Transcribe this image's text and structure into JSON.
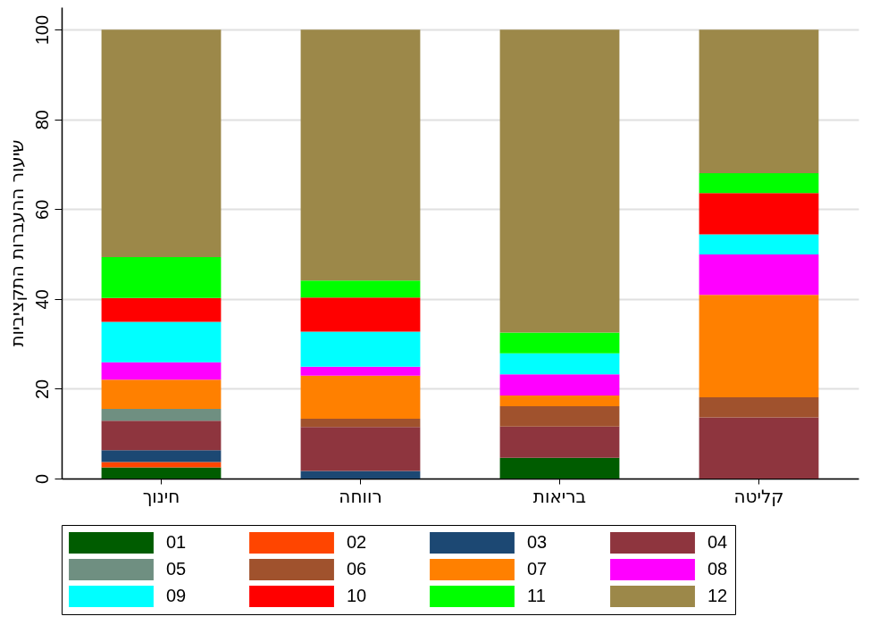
{
  "chart_data": {
    "type": "bar",
    "stacked": true,
    "ylabel": "שיעור ההעברות התקציביות",
    "categories": [
      "חינוך",
      "רווחה",
      "בריאות",
      "קליטה"
    ],
    "ylim": [
      0,
      105
    ],
    "yticks": [
      0,
      20,
      40,
      60,
      80,
      100
    ],
    "grid": "y",
    "legend": "bottom",
    "series": [
      {
        "name": "01",
        "color": "#005c00",
        "values": [
          2.5,
          0,
          4.6,
          0
        ]
      },
      {
        "name": "02",
        "color": "#ff4500",
        "values": [
          1.2,
          0,
          0,
          0
        ]
      },
      {
        "name": "03",
        "color": "#1c4873",
        "values": [
          2.6,
          1.7,
          0,
          0
        ]
      },
      {
        "name": "04",
        "color": "#8e353e",
        "values": [
          6.6,
          9.8,
          7.0,
          13.6
        ]
      },
      {
        "name": "05",
        "color": "#6f8f81",
        "values": [
          2.6,
          0,
          0,
          0
        ]
      },
      {
        "name": "06",
        "color": "#a0522d",
        "values": [
          0,
          1.8,
          4.5,
          4.5
        ]
      },
      {
        "name": "07",
        "color": "#ff8000",
        "values": [
          6.5,
          9.6,
          2.4,
          22.8
        ]
      },
      {
        "name": "08",
        "color": "#ff00ff",
        "values": [
          3.9,
          2.0,
          4.7,
          9.0
        ]
      },
      {
        "name": "09",
        "color": "#00ffff",
        "values": [
          9.0,
          7.8,
          4.7,
          4.5
        ]
      },
      {
        "name": "10",
        "color": "#ff0000",
        "values": [
          5.3,
          7.6,
          0,
          9.2
        ]
      },
      {
        "name": "11",
        "color": "#00ff00",
        "values": [
          9.1,
          3.8,
          4.6,
          4.4
        ]
      },
      {
        "name": "12",
        "color": "#9c8849",
        "values": [
          50.7,
          55.9,
          67.5,
          32.0
        ]
      }
    ]
  }
}
